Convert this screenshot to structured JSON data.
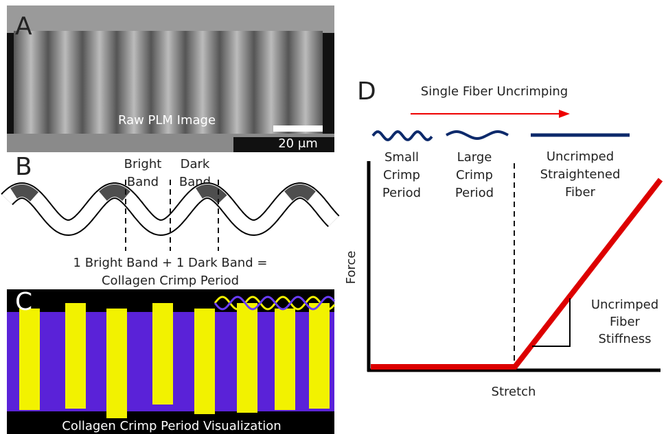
{
  "panels": {
    "a": {
      "label": "A",
      "caption": "Raw PLM Image",
      "scale_bar": "20 μm"
    },
    "b": {
      "label": "B",
      "bright": [
        "Bright",
        "Band"
      ],
      "dark": [
        "Dark",
        "Band"
      ],
      "equation": [
        "1 Bright Band + 1 Dark Band =",
        "Collagen Crimp Period"
      ]
    },
    "c": {
      "label": "C",
      "caption": "Collagen Crimp Period Visualization"
    },
    "d": {
      "label": "D",
      "arrow_label": "Single Fiber Uncrimping",
      "stages": [
        [
          "Small",
          "Crimp",
          "Period"
        ],
        [
          "Large",
          "Crimp",
          "Period"
        ],
        [
          "Uncrimped",
          "Straightened",
          "Fiber"
        ]
      ],
      "stiffness": [
        "Uncrimped",
        "Fiber",
        "Stiffness"
      ],
      "y_axis": "Force",
      "x_axis": "Stretch"
    }
  }
}
